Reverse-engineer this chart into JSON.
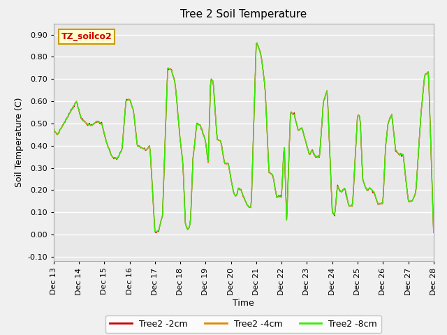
{
  "title": "Tree 2 Soil Temperature",
  "xlabel": "Time",
  "ylabel": "Soil Temperature (C)",
  "ylim": [
    -0.12,
    0.95
  ],
  "yticks": [
    -0.1,
    0.0,
    0.1,
    0.2,
    0.3,
    0.4,
    0.5,
    0.6,
    0.7,
    0.8,
    0.9
  ],
  "xtick_labels": [
    "Dec 13",
    "Dec 14",
    "Dec 15",
    "Dec 16",
    "Dec 17",
    "Dec 18",
    "Dec 19",
    "Dec 20",
    "Dec 21",
    "Dec 22",
    "Dec 23",
    "Dec 24",
    "Dec 25",
    "Dec 26",
    "Dec 27",
    "Dec 28"
  ],
  "line_color_2cm": "#cc0000",
  "line_color_4cm": "#dd8800",
  "line_color_8cm": "#33ee00",
  "fig_bg": "#f0f0f0",
  "plot_bg": "#e8e8e8",
  "annotation_text": "TZ_soilco2",
  "annotation_bg": "#ffffcc",
  "annotation_border": "#cc9900",
  "annotation_text_color": "#cc0000",
  "legend_labels": [
    "Tree2 -2cm",
    "Tree2 -4cm",
    "Tree2 -8cm"
  ],
  "waypoints_x": [
    0.0,
    0.15,
    0.3,
    0.5,
    0.7,
    0.9,
    1.1,
    1.3,
    1.5,
    1.7,
    1.9,
    2.1,
    2.3,
    2.5,
    2.7,
    2.85,
    3.0,
    3.15,
    3.3,
    3.5,
    3.65,
    3.8,
    4.0,
    4.15,
    4.3,
    4.5,
    4.65,
    4.8,
    5.0,
    5.1,
    5.2,
    5.3,
    5.4,
    5.5,
    5.65,
    5.8,
    6.0,
    6.1,
    6.2,
    6.3,
    6.45,
    6.6,
    6.75,
    6.9,
    7.0,
    7.1,
    7.2,
    7.3,
    7.4,
    7.5,
    7.65,
    7.8,
    8.0,
    8.1,
    8.2,
    8.35,
    8.5,
    8.65,
    8.8,
    9.0,
    9.1,
    9.2,
    9.35,
    9.5,
    9.65,
    9.8,
    10.0,
    10.1,
    10.2,
    10.35,
    10.5,
    10.65,
    10.8,
    11.0,
    11.1,
    11.2,
    11.35,
    11.5,
    11.65,
    11.8,
    12.0,
    12.1,
    12.2,
    12.35,
    12.5,
    12.65,
    12.8,
    13.0,
    13.1,
    13.2,
    13.35,
    13.5,
    13.65,
    13.8,
    14.0,
    14.15,
    14.3,
    14.5,
    14.65,
    14.8,
    15.0
  ],
  "waypoints_y": [
    0.47,
    0.45,
    0.48,
    0.52,
    0.56,
    0.6,
    0.52,
    0.5,
    0.49,
    0.51,
    0.5,
    0.41,
    0.35,
    0.34,
    0.38,
    0.6,
    0.61,
    0.56,
    0.4,
    0.39,
    0.38,
    0.4,
    0.01,
    0.02,
    0.09,
    0.75,
    0.74,
    0.68,
    0.42,
    0.33,
    0.05,
    0.02,
    0.05,
    0.34,
    0.5,
    0.49,
    0.42,
    0.32,
    0.7,
    0.69,
    0.43,
    0.42,
    0.32,
    0.32,
    0.25,
    0.19,
    0.17,
    0.21,
    0.2,
    0.17,
    0.13,
    0.12,
    0.87,
    0.84,
    0.8,
    0.66,
    0.28,
    0.27,
    0.17,
    0.17,
    0.42,
    0.06,
    0.55,
    0.54,
    0.47,
    0.48,
    0.4,
    0.36,
    0.38,
    0.35,
    0.35,
    0.6,
    0.65,
    0.1,
    0.09,
    0.22,
    0.19,
    0.21,
    0.13,
    0.13,
    0.54,
    0.53,
    0.25,
    0.2,
    0.21,
    0.19,
    0.14,
    0.14,
    0.39,
    0.5,
    0.54,
    0.38,
    0.36,
    0.36,
    0.15,
    0.15,
    0.19,
    0.54,
    0.72,
    0.73,
    0.01
  ]
}
